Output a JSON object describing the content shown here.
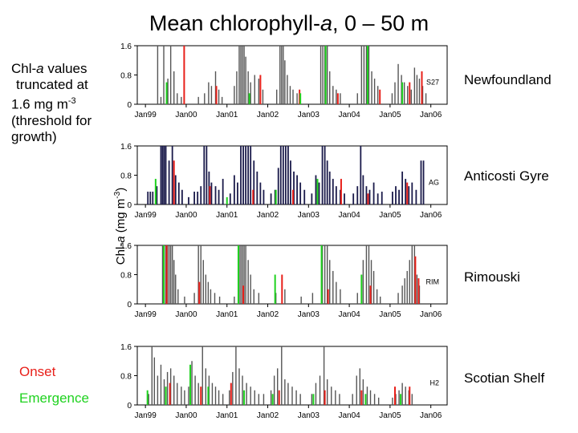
{
  "title": {
    "pre": "Mean chlorophyll-",
    "it": "a",
    "post": ", 0 – 50 m"
  },
  "note": {
    "l1a": "Chl-",
    "l1b": "a",
    "l1c": " values",
    "l2": "truncated at",
    "l3": "1.6 mg m",
    "l3sup": "-3",
    "l4": "(threshold for",
    "l5": "growth)"
  },
  "legend": {
    "onset": "Onset",
    "emergence": "Emergence"
  },
  "ylabel": {
    "a": "Chl-",
    "b": "a",
    "c": " (mg m",
    "sup": "-3",
    "d": ")"
  },
  "colors": {
    "onset": "#e8201a",
    "emergence": "#1fd21f",
    "AG": "#1a1a4a",
    "default": "#555555"
  },
  "chart_data": [
    {
      "type": "bar",
      "region": "Newfoundland",
      "station": "S27",
      "xticks": [
        "Jan99",
        "Jan00",
        "Jan01",
        "Jan02",
        "Jan03",
        "Jan04",
        "Jan05",
        "Jan06"
      ],
      "yticks": [
        "0",
        "0.8",
        "1.6"
      ],
      "ylim": [
        0,
        1.6
      ],
      "xlim": [
        1998.8,
        2006.4
      ],
      "bars": [
        [
          1999.3,
          1.6
        ],
        [
          1999.38,
          0.2
        ],
        [
          1999.45,
          1.6
        ],
        [
          1999.55,
          0.7
        ],
        [
          1999.62,
          1.6
        ],
        [
          1999.7,
          0.9
        ],
        [
          1999.78,
          0.3
        ],
        [
          1999.88,
          0.2
        ],
        [
          2000.3,
          0.2
        ],
        [
          2000.45,
          0.3
        ],
        [
          2000.55,
          0.6
        ],
        [
          2000.62,
          0.5
        ],
        [
          2000.72,
          0.9
        ],
        [
          2000.8,
          0.4
        ],
        [
          2000.88,
          0.2
        ],
        [
          2001.18,
          0.5
        ],
        [
          2001.24,
          0.9
        ],
        [
          2001.3,
          1.6
        ],
        [
          2001.34,
          1.6
        ],
        [
          2001.38,
          1.6
        ],
        [
          2001.42,
          1.6
        ],
        [
          2001.46,
          1.3
        ],
        [
          2001.52,
          0.9
        ],
        [
          2001.58,
          0.6
        ],
        [
          2001.68,
          0.8
        ],
        [
          2001.78,
          0.7
        ],
        [
          2001.88,
          0.4
        ],
        [
          2002.22,
          0.4
        ],
        [
          2002.3,
          1.6
        ],
        [
          2002.34,
          1.6
        ],
        [
          2002.38,
          1.6
        ],
        [
          2002.42,
          1.2
        ],
        [
          2002.48,
          0.8
        ],
        [
          2002.55,
          0.5
        ],
        [
          2002.62,
          0.4
        ],
        [
          2002.72,
          0.3
        ],
        [
          2003.3,
          1.6
        ],
        [
          2003.35,
          1.6
        ],
        [
          2003.4,
          1.6
        ],
        [
          2003.46,
          1.6
        ],
        [
          2003.52,
          0.9
        ],
        [
          2003.6,
          0.5
        ],
        [
          2003.68,
          0.4
        ],
        [
          2003.78,
          0.3
        ],
        [
          2004.2,
          0.3
        ],
        [
          2004.3,
          1.6
        ],
        [
          2004.36,
          1.6
        ],
        [
          2004.42,
          1.6
        ],
        [
          2004.48,
          1.6
        ],
        [
          2004.55,
          0.9
        ],
        [
          2004.62,
          0.7
        ],
        [
          2004.7,
          0.5
        ],
        [
          2005.05,
          0.3
        ],
        [
          2005.12,
          0.6
        ],
        [
          2005.2,
          1.1
        ],
        [
          2005.28,
          0.8
        ],
        [
          2005.35,
          0.6
        ],
        [
          2005.43,
          0.5
        ],
        [
          2005.52,
          0.4
        ],
        [
          2005.6,
          1.0
        ],
        [
          2005.66,
          0.8
        ],
        [
          2005.72,
          0.7
        ],
        [
          2005.8,
          0.5
        ],
        [
          2005.88,
          0.3
        ]
      ],
      "onset": [
        [
          1999.95,
          1.6
        ],
        [
          2000.74,
          0.5
        ],
        [
          2001.82,
          0.8
        ],
        [
          2002.78,
          0.4
        ],
        [
          2003.72,
          0.3
        ],
        [
          2004.75,
          0.4
        ],
        [
          2005.48,
          0.6
        ],
        [
          2005.78,
          0.9
        ]
      ],
      "emergence": [
        [
          1999.52,
          0.6
        ],
        [
          2001.55,
          0.3
        ],
        [
          2002.8,
          0.3
        ],
        [
          2003.42,
          1.6
        ],
        [
          2004.45,
          1.6
        ],
        [
          2005.3,
          0.6
        ]
      ]
    },
    {
      "type": "bar",
      "region": "Anticosti Gyre",
      "station": "AG",
      "xticks": [
        "Jan99",
        "Jan00",
        "Jan01",
        "Jan02",
        "Jan03",
        "Jan04",
        "Jan05",
        "Jan06"
      ],
      "yticks": [
        "0",
        "0.8",
        "1.6"
      ],
      "ylim": [
        0,
        1.6
      ],
      "xlim": [
        1998.8,
        2006.4
      ],
      "bars": [
        [
          1999.06,
          0.35
        ],
        [
          1999.12,
          0.35
        ],
        [
          1999.18,
          0.35
        ],
        [
          1999.28,
          0.5
        ],
        [
          1999.38,
          1.6
        ],
        [
          1999.42,
          1.6
        ],
        [
          1999.46,
          1.6
        ],
        [
          1999.5,
          1.6
        ],
        [
          1999.58,
          1.2
        ],
        [
          1999.66,
          1.6
        ],
        [
          1999.74,
          0.8
        ],
        [
          1999.82,
          0.6
        ],
        [
          1999.9,
          0.4
        ],
        [
          2000.06,
          0.2
        ],
        [
          2000.2,
          0.35
        ],
        [
          2000.28,
          0.35
        ],
        [
          2000.36,
          0.5
        ],
        [
          2000.44,
          1.6
        ],
        [
          2000.5,
          1.6
        ],
        [
          2000.56,
          0.9
        ],
        [
          2000.62,
          0.6
        ],
        [
          2000.72,
          0.5
        ],
        [
          2000.8,
          0.4
        ],
        [
          2000.9,
          0.7
        ],
        [
          2001.08,
          0.3
        ],
        [
          2001.18,
          0.8
        ],
        [
          2001.26,
          0.6
        ],
        [
          2001.34,
          1.6
        ],
        [
          2001.4,
          1.6
        ],
        [
          2001.46,
          1.6
        ],
        [
          2001.52,
          1.6
        ],
        [
          2001.58,
          1.6
        ],
        [
          2001.66,
          1.2
        ],
        [
          2001.74,
          0.9
        ],
        [
          2001.82,
          0.6
        ],
        [
          2001.9,
          0.4
        ],
        [
          2002.08,
          0.3
        ],
        [
          2002.18,
          0.4
        ],
        [
          2002.26,
          1.0
        ],
        [
          2002.32,
          1.6
        ],
        [
          2002.38,
          1.6
        ],
        [
          2002.44,
          1.6
        ],
        [
          2002.5,
          1.6
        ],
        [
          2002.56,
          1.2
        ],
        [
          2002.64,
          0.9
        ],
        [
          2002.72,
          0.8
        ],
        [
          2002.8,
          0.6
        ],
        [
          2002.9,
          0.4
        ],
        [
          2003.08,
          0.3
        ],
        [
          2003.18,
          0.8
        ],
        [
          2003.26,
          0.6
        ],
        [
          2003.34,
          1.6
        ],
        [
          2003.4,
          1.6
        ],
        [
          2003.46,
          1.2
        ],
        [
          2003.52,
          0.9
        ],
        [
          2003.6,
          0.7
        ],
        [
          2003.68,
          0.5
        ],
        [
          2003.78,
          0.4
        ],
        [
          2003.88,
          0.3
        ],
        [
          2004.1,
          0.3
        ],
        [
          2004.2,
          0.5
        ],
        [
          2004.28,
          1.6
        ],
        [
          2004.34,
          0.8
        ],
        [
          2004.42,
          0.5
        ],
        [
          2004.5,
          0.4
        ],
        [
          2004.6,
          0.6
        ],
        [
          2004.7,
          0.3
        ],
        [
          2004.8,
          0.35
        ],
        [
          2005.06,
          0.35
        ],
        [
          2005.14,
          0.5
        ],
        [
          2005.22,
          0.4
        ],
        [
          2005.3,
          0.9
        ],
        [
          2005.38,
          0.7
        ],
        [
          2005.46,
          0.5
        ],
        [
          2005.54,
          0.6
        ],
        [
          2005.64,
          0.4
        ],
        [
          2005.76,
          1.2
        ],
        [
          2005.82,
          1.2
        ]
      ],
      "onset": [
        [
          1999.7,
          1.2
        ],
        [
          2000.58,
          0.5
        ],
        [
          2001.64,
          0.4
        ],
        [
          2002.62,
          0.4
        ],
        [
          2003.8,
          0.7
        ],
        [
          2004.46,
          0.3
        ],
        [
          2005.42,
          0.6
        ]
      ],
      "emergence": [
        [
          1999.25,
          0.7
        ],
        [
          2001.0,
          0.2
        ],
        [
          2002.2,
          0.4
        ],
        [
          2003.22,
          0.7
        ]
      ]
    },
    {
      "type": "bar",
      "region": "Rimouski",
      "station": "RIM",
      "xticks": [
        "Jan99",
        "Jan00",
        "Jan01",
        "Jan02",
        "Jan03",
        "Jan04",
        "Jan05",
        "Jan06"
      ],
      "yticks": [
        "0",
        "0.8",
        "1.6"
      ],
      "ylim": [
        0,
        1.6
      ],
      "xlim": [
        1998.8,
        2006.4
      ],
      "bars": [
        [
          1999.42,
          1.6
        ],
        [
          1999.46,
          1.6
        ],
        [
          1999.5,
          1.6
        ],
        [
          1999.54,
          1.6
        ],
        [
          1999.58,
          1.6
        ],
        [
          1999.62,
          1.6
        ],
        [
          1999.66,
          1.6
        ],
        [
          1999.7,
          1.2
        ],
        [
          1999.74,
          0.8
        ],
        [
          1999.8,
          0.4
        ],
        [
          1999.96,
          0.2
        ],
        [
          2000.2,
          0.3
        ],
        [
          2000.3,
          1.6
        ],
        [
          2000.36,
          1.6
        ],
        [
          2000.42,
          1.2
        ],
        [
          2000.48,
          0.8
        ],
        [
          2000.54,
          0.6
        ],
        [
          2000.6,
          0.4
        ],
        [
          2000.7,
          0.3
        ],
        [
          2000.82,
          0.2
        ],
        [
          2001.18,
          0.2
        ],
        [
          2001.3,
          1.6
        ],
        [
          2001.34,
          1.6
        ],
        [
          2001.38,
          1.6
        ],
        [
          2001.42,
          1.6
        ],
        [
          2001.46,
          1.6
        ],
        [
          2001.52,
          1.2
        ],
        [
          2001.58,
          0.8
        ],
        [
          2001.66,
          0.4
        ],
        [
          2001.78,
          0.3
        ],
        [
          2002.2,
          0.3
        ],
        [
          2002.42,
          0.4
        ],
        [
          2002.82,
          0.2
        ],
        [
          2003.1,
          0.3
        ],
        [
          2003.34,
          1.6
        ],
        [
          2003.4,
          1.6
        ],
        [
          2003.46,
          1.6
        ],
        [
          2003.52,
          1.2
        ],
        [
          2003.6,
          0.9
        ],
        [
          2003.68,
          0.6
        ],
        [
          2003.78,
          0.4
        ],
        [
          2004.2,
          0.3
        ],
        [
          2004.34,
          1.2
        ],
        [
          2004.42,
          1.6
        ],
        [
          2004.48,
          1.6
        ],
        [
          2004.54,
          1.2
        ],
        [
          2004.6,
          0.9
        ],
        [
          2004.68,
          0.4
        ],
        [
          2004.76,
          0.2
        ],
        [
          2005.2,
          0.3
        ],
        [
          2005.3,
          0.5
        ],
        [
          2005.36,
          0.7
        ],
        [
          2005.42,
          0.9
        ],
        [
          2005.48,
          1.2
        ],
        [
          2005.54,
          1.6
        ],
        [
          2005.6,
          1.6
        ],
        [
          2005.66,
          0.8
        ],
        [
          2005.72,
          0.5
        ]
      ],
      "onset": [
        [
          1999.52,
          1.6
        ],
        [
          2000.32,
          0.6
        ],
        [
          2001.4,
          0.5
        ],
        [
          2002.35,
          0.8
        ],
        [
          2003.48,
          0.4
        ],
        [
          2004.52,
          0.5
        ],
        [
          2005.62,
          1.3
        ],
        [
          2005.7,
          0.7
        ]
      ],
      "emergence": [
        [
          1999.45,
          1.6
        ],
        [
          2001.28,
          1.6
        ],
        [
          2002.18,
          0.8
        ],
        [
          2003.32,
          1.6
        ],
        [
          2004.3,
          0.8
        ]
      ]
    },
    {
      "type": "bar",
      "region": "Scotian Shelf",
      "station": "H2",
      "xticks": [
        "Jan99",
        "Jan00",
        "Jan01",
        "Jan02",
        "Jan03",
        "Jan04",
        "Jan05",
        "Jan06"
      ],
      "yticks": [
        "0",
        "0.8",
        "1.6"
      ],
      "ylim": [
        0,
        1.6
      ],
      "xlim": [
        1998.8,
        2006.4
      ],
      "bars": [
        [
          1999.08,
          0.3
        ],
        [
          1999.16,
          1.6
        ],
        [
          1999.22,
          1.3
        ],
        [
          1999.3,
          0.8
        ],
        [
          1999.38,
          1.1
        ],
        [
          1999.46,
          0.7
        ],
        [
          1999.54,
          0.9
        ],
        [
          1999.62,
          1.0
        ],
        [
          1999.7,
          0.8
        ],
        [
          1999.78,
          0.6
        ],
        [
          1999.88,
          0.5
        ],
        [
          1999.96,
          0.4
        ],
        [
          2000.06,
          0.5
        ],
        [
          2000.14,
          1.2
        ],
        [
          2000.22,
          0.8
        ],
        [
          2000.3,
          0.6
        ],
        [
          2000.4,
          1.6
        ],
        [
          2000.48,
          1.0
        ],
        [
          2000.56,
          0.8
        ],
        [
          2000.64,
          0.6
        ],
        [
          2000.72,
          0.5
        ],
        [
          2000.8,
          0.4
        ],
        [
          2000.9,
          0.3
        ],
        [
          2001.06,
          0.4
        ],
        [
          2001.14,
          0.9
        ],
        [
          2001.22,
          1.6
        ],
        [
          2001.3,
          1.0
        ],
        [
          2001.38,
          0.8
        ],
        [
          2001.48,
          0.6
        ],
        [
          2001.58,
          0.5
        ],
        [
          2001.68,
          0.4
        ],
        [
          2001.78,
          0.3
        ],
        [
          2001.9,
          0.3
        ],
        [
          2002.08,
          0.4
        ],
        [
          2002.16,
          0.8
        ],
        [
          2002.24,
          1.0
        ],
        [
          2002.34,
          1.6
        ],
        [
          2002.42,
          0.7
        ],
        [
          2002.5,
          0.6
        ],
        [
          2002.6,
          0.5
        ],
        [
          2002.7,
          0.4
        ],
        [
          2002.8,
          0.3
        ],
        [
          2003.08,
          0.3
        ],
        [
          2003.18,
          0.6
        ],
        [
          2003.28,
          0.8
        ],
        [
          2003.38,
          1.6
        ],
        [
          2003.46,
          0.7
        ],
        [
          2003.56,
          0.5
        ],
        [
          2003.66,
          0.4
        ],
        [
          2003.76,
          0.3
        ],
        [
          2004.08,
          0.3
        ],
        [
          2004.18,
          0.8
        ],
        [
          2004.26,
          1.0
        ],
        [
          2004.34,
          0.7
        ],
        [
          2004.44,
          0.5
        ],
        [
          2004.52,
          0.4
        ],
        [
          2004.62,
          0.3
        ],
        [
          2004.72,
          0.2
        ],
        [
          2005.06,
          0.2
        ],
        [
          2005.14,
          0.3
        ],
        [
          2005.22,
          0.4
        ],
        [
          2005.3,
          0.6
        ],
        [
          2005.38,
          0.5
        ],
        [
          2005.46,
          0.4
        ],
        [
          2005.54,
          0.3
        ]
      ],
      "onset": [
        [
          1999.6,
          0.6
        ],
        [
          2000.36,
          0.5
        ],
        [
          2001.1,
          0.6
        ],
        [
          2002.28,
          0.4
        ],
        [
          2003.4,
          0.4
        ],
        [
          2004.3,
          0.4
        ],
        [
          2005.12,
          0.5
        ],
        [
          2005.48,
          0.5
        ]
      ],
      "emergence": [
        [
          1999.05,
          0.4
        ],
        [
          1999.5,
          0.5
        ],
        [
          2000.1,
          1.1
        ],
        [
          2000.54,
          0.5
        ],
        [
          2001.42,
          0.4
        ],
        [
          2002.12,
          0.3
        ],
        [
          2003.12,
          0.3
        ],
        [
          2004.4,
          0.3
        ],
        [
          2005.26,
          0.3
        ]
      ]
    }
  ]
}
